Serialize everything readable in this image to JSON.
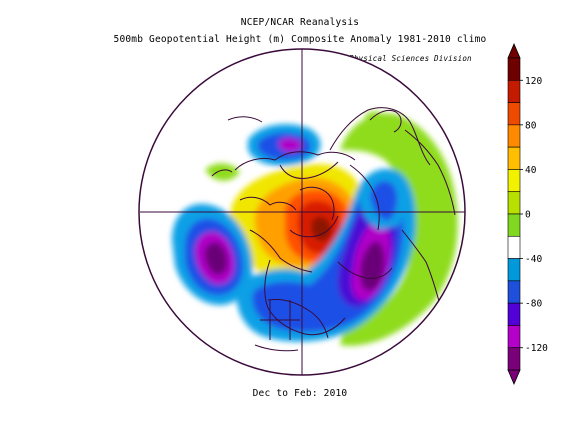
{
  "title": "NCEP/NCAR Reanalysis",
  "subtitle": "500mb Geopotential Height (m) Composite Anomaly 1981-2010 climo",
  "credit": "NOAA/ESRL Physical Sciences Division",
  "period": "Dec to Feb: 2010",
  "colorbar": {
    "ticks": [
      120,
      80,
      40,
      0,
      -40,
      -80,
      -120
    ],
    "colors": [
      "#6e0000",
      "#c41a00",
      "#ee4a00",
      "#ff8a00",
      "#ffbf00",
      "#f2f200",
      "#b8e000",
      "#80d820",
      "#ffffff",
      "#009adc",
      "#1f50dc",
      "#5200d8",
      "#b400c8",
      "#7a007a"
    ]
  },
  "anomaly_colors": {
    "green": "#8fdc1e",
    "yellow": "#f0e600",
    "orange": "#ffa000",
    "red_orange": "#ff5000",
    "red": "#d81e00",
    "dark_red": "#8c1400",
    "light_blue": "#0aa0e6",
    "blue": "#1e50e6",
    "indigo": "#4a10d4",
    "violet": "#b000c8",
    "purple": "#6a0078"
  },
  "line_color": "#3a0a3a"
}
